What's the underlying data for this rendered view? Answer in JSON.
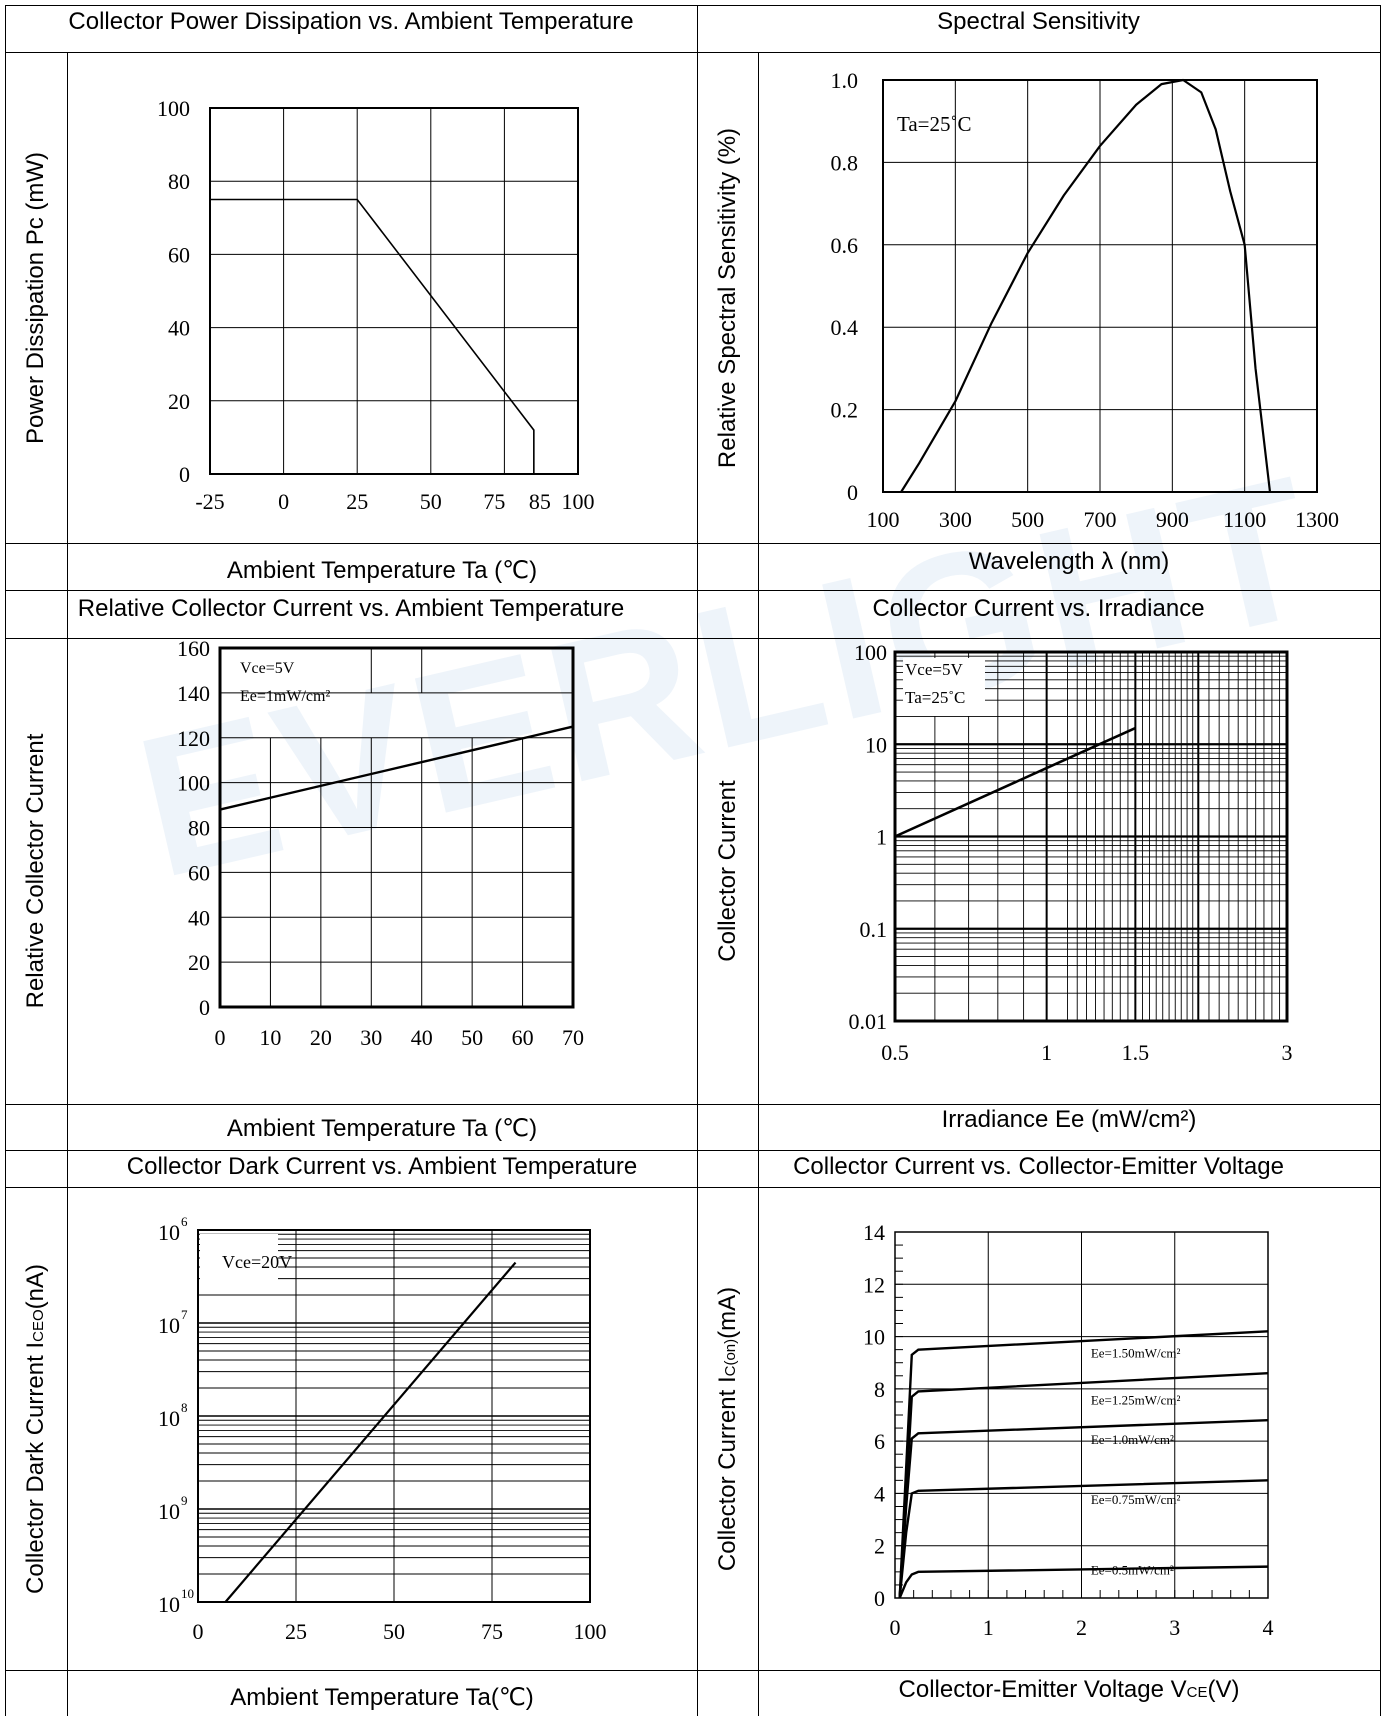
{
  "watermark": "EVERLIGHT",
  "panels": {
    "p1": {
      "title": "Collector Power Dissipation vs. Ambient Temperature",
      "ylabel": "Power Dissipation Pc (mW)",
      "xlabel": "Ambient Temperature Ta (℃)"
    },
    "p2": {
      "title": "Spectral Sensitivity",
      "ylabel": "Relative Spectral Sensitivity (%)",
      "xlabel": "Wavelength λ (nm)",
      "annotation": "Ta=25˚C"
    },
    "p3": {
      "title": "Relative Collector Current vs. Ambient Temperature",
      "ylabel": "Relative Collector Current",
      "xlabel": "Ambient Temperature Ta (℃)",
      "annotation1": "Vce=5V",
      "annotation2": "Ee=1mW/cm²"
    },
    "p4": {
      "title": "Collector Current vs. Irradiance",
      "ylabel": "Collector Current",
      "xlabel": "Irradiance Ee (mW/cm²)",
      "annotation1": "Vce=5V",
      "annotation2": "Ta=25˚C"
    },
    "p5": {
      "title": "Collector Dark Current vs. Ambient Temperature",
      "ylabel_main": "Collector Dark Current I",
      "ylabel_sub": "CEO",
      "ylabel_tail": "(nA)",
      "xlabel": "Ambient Temperature Ta(℃)",
      "annotation": "Vce=20V"
    },
    "p6": {
      "title": "Collector Current vs. Collector-Emitter Voltage",
      "ylabel_main": "Collector Current I",
      "ylabel_sub": "C(on)",
      "ylabel_tail": "(mA)",
      "xlabel_main": "Collector-Emitter Voltage V",
      "xlabel_sub": "CE",
      "xlabel_tail": "(V)"
    }
  },
  "chart_data": [
    {
      "id": "power-dissipation",
      "type": "line",
      "xticks": [
        "-25",
        "0",
        "25",
        "50",
        "75",
        "85",
        "100"
      ],
      "yticks": [
        "0",
        "20",
        "40",
        "60",
        "80",
        "100"
      ],
      "xlim": [
        -25,
        100
      ],
      "ylim": [
        0,
        100
      ],
      "grid": true,
      "series": [
        {
          "x": [
            -25,
            25,
            85,
            85
          ],
          "y": [
            75,
            75,
            12,
            0
          ]
        }
      ]
    },
    {
      "id": "spectral-sensitivity",
      "type": "line",
      "xticks": [
        "100",
        "300",
        "500",
        "700",
        "900",
        "1100",
        "1300"
      ],
      "yticks": [
        "0",
        "0.2",
        "0.4",
        "0.6",
        "0.8",
        "1.0"
      ],
      "xlim": [
        100,
        1300
      ],
      "ylim": [
        0,
        1.0
      ],
      "grid": true,
      "series": [
        {
          "x": [
            150,
            200,
            300,
            400,
            500,
            600,
            700,
            800,
            870,
            930,
            980,
            1020,
            1060,
            1100,
            1130,
            1170
          ],
          "y": [
            0,
            0.07,
            0.22,
            0.41,
            0.58,
            0.72,
            0.84,
            0.94,
            0.99,
            1.0,
            0.97,
            0.88,
            0.73,
            0.6,
            0.3,
            0
          ]
        }
      ]
    },
    {
      "id": "relative-collector-current",
      "type": "line",
      "xticks": [
        "0",
        "10",
        "20",
        "30",
        "40",
        "50",
        "60",
        "70"
      ],
      "yticks": [
        "0",
        "20",
        "40",
        "60",
        "80",
        "100",
        "120",
        "140",
        "160"
      ],
      "xlim": [
        0,
        70
      ],
      "ylim": [
        0,
        160
      ],
      "grid": true,
      "series": [
        {
          "x": [
            0,
            70
          ],
          "y": [
            88,
            125
          ]
        }
      ]
    },
    {
      "id": "collector-current-irradiance",
      "type": "line",
      "xscale": "log",
      "yscale": "log",
      "xticks": [
        "0.5",
        "1",
        "1.5",
        "3"
      ],
      "yticks": [
        "0.01",
        "0.1",
        "1",
        "10",
        "100"
      ],
      "xlim": [
        0.5,
        3
      ],
      "ylim": [
        0.01,
        100
      ],
      "grid": true,
      "series": [
        {
          "x": [
            0.5,
            1.5
          ],
          "y": [
            1,
            15
          ]
        }
      ]
    },
    {
      "id": "dark-current",
      "type": "line",
      "yscale": "log",
      "xticks": [
        "0",
        "25",
        "50",
        "75",
        "100"
      ],
      "yticks": [
        "10",
        "10",
        "10",
        "10",
        "10"
      ],
      "ytick_exponents": [
        "10",
        "9",
        "8",
        "7",
        "6"
      ],
      "xlim": [
        0,
        100
      ],
      "grid": true,
      "series": [
        {
          "x": [
            7,
            81
          ],
          "y_decades": [
            0,
            3.65
          ]
        }
      ]
    },
    {
      "id": "ic-vs-vce",
      "type": "line",
      "xticks": [
        "0",
        "1",
        "2",
        "3",
        "4"
      ],
      "yticks": [
        "0",
        "2",
        "4",
        "6",
        "8",
        "10",
        "12",
        "14"
      ],
      "xlim": [
        0,
        4
      ],
      "ylim": [
        0,
        14
      ],
      "grid": true,
      "series": [
        {
          "name": "Ee=1.50mW/cm²",
          "x": [
            0.05,
            0.12,
            0.18,
            0.25,
            4
          ],
          "y": [
            0,
            5,
            9.3,
            9.5,
            10.2
          ]
        },
        {
          "name": "Ee=1.25mW/cm²",
          "x": [
            0.05,
            0.12,
            0.18,
            0.25,
            4
          ],
          "y": [
            0,
            4,
            7.7,
            7.9,
            8.6
          ]
        },
        {
          "name": "Ee=1.0mW/cm²",
          "x": [
            0.05,
            0.12,
            0.18,
            0.25,
            4
          ],
          "y": [
            0,
            3.5,
            6.1,
            6.3,
            6.8
          ]
        },
        {
          "name": "Ee=0.75mW/cm²",
          "x": [
            0.05,
            0.12,
            0.18,
            0.25,
            4
          ],
          "y": [
            0,
            2.5,
            4,
            4.1,
            4.5
          ]
        },
        {
          "name": "Ee=0.5mW/cm²",
          "x": [
            0.05,
            0.12,
            0.18,
            0.25,
            4
          ],
          "y": [
            0,
            0.6,
            0.9,
            1.0,
            1.2
          ]
        }
      ]
    }
  ]
}
